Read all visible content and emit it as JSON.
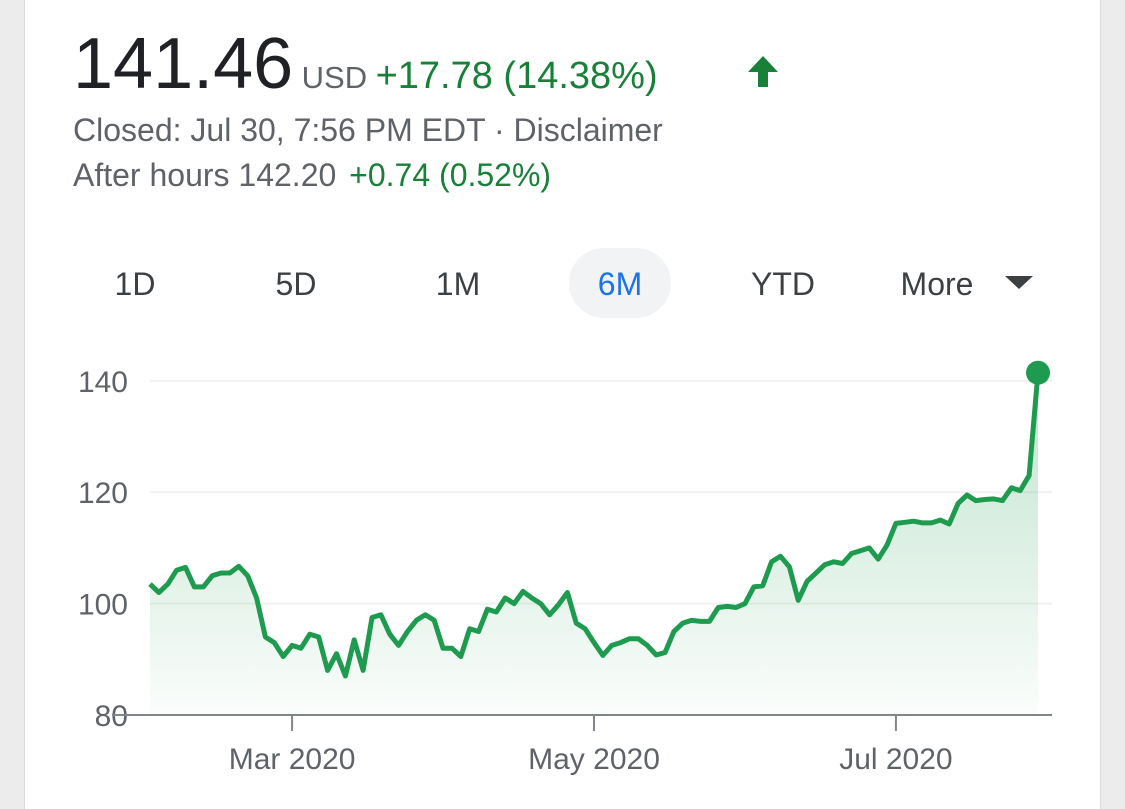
{
  "quote": {
    "price": "141.46",
    "currency": "USD",
    "change": "+17.78 (14.38%)",
    "closed": "Closed: Jul 30, 7:56 PM EDT",
    "separator": "·",
    "disclaimer": "Disclaimer",
    "after_hours_label": "After hours",
    "after_hours_price": "142.20",
    "after_hours_change": "+0.74 (0.52%)"
  },
  "tabs": [
    "1D",
    "5D",
    "1M",
    "6M",
    "YTD",
    "More"
  ],
  "active_tab": "6M",
  "chart_data": {
    "type": "line",
    "categories": [
      null,
      null,
      null,
      null,
      null,
      null,
      null,
      null,
      null,
      null,
      null,
      null,
      null,
      null,
      null,
      null,
      "Mar 2020",
      null,
      null,
      null,
      null,
      null,
      null,
      null,
      null,
      null,
      null,
      null,
      null,
      null,
      null,
      null,
      null,
      null,
      null,
      null,
      null,
      null,
      null,
      null,
      null,
      null,
      null,
      null,
      null,
      null,
      null,
      null,
      null,
      null,
      "May 2020",
      null,
      null,
      null,
      null,
      null,
      null,
      null,
      null,
      null,
      null,
      null,
      null,
      null,
      null,
      null,
      null,
      null,
      null,
      null,
      null,
      null,
      null,
      null,
      null,
      null,
      null,
      null,
      null,
      null,
      null,
      null,
      null,
      null,
      "Jul 2020",
      null,
      null,
      null,
      null,
      null,
      null,
      null,
      null,
      null,
      null,
      null,
      null,
      null,
      null,
      null,
      null
    ],
    "series": [
      {
        "color": "#1e9b4f",
        "values": [
          103.5,
          102,
          103.5,
          106,
          106.5,
          103,
          103,
          105,
          105.5,
          105.5,
          106.7,
          105,
          101,
          94,
          93,
          90.5,
          92.5,
          92,
          94.5,
          94,
          88,
          91,
          87,
          93.5,
          88,
          97.5,
          98,
          94.5,
          92.5,
          95,
          97,
          98,
          97,
          92,
          92,
          90.5,
          95.5,
          95,
          99,
          98.5,
          101,
          100,
          102.2,
          101,
          100,
          98,
          99.8,
          102,
          96.5,
          95.5,
          93,
          90.7,
          92.5,
          93,
          93.7,
          93.7,
          92.5,
          90.8,
          91.2,
          95,
          96.5,
          97,
          96.8,
          96.8,
          99.3,
          99.5,
          99.3,
          100,
          103,
          103.2,
          107.5,
          108.5,
          106.6,
          100.6,
          104,
          105.5,
          107,
          107.5,
          107.2,
          109,
          109.5,
          110,
          108,
          110.5,
          114.4,
          114.6,
          114.8,
          114.5,
          114.5,
          115,
          114.3,
          118,
          119.5,
          118.5,
          118.7,
          118.8,
          118.5,
          120.8,
          120.3,
          123,
          141.46
        ]
      }
    ],
    "ylim": [
      80,
      145
    ],
    "yticks": [
      80,
      100,
      120,
      140
    ],
    "grid": true
  }
}
